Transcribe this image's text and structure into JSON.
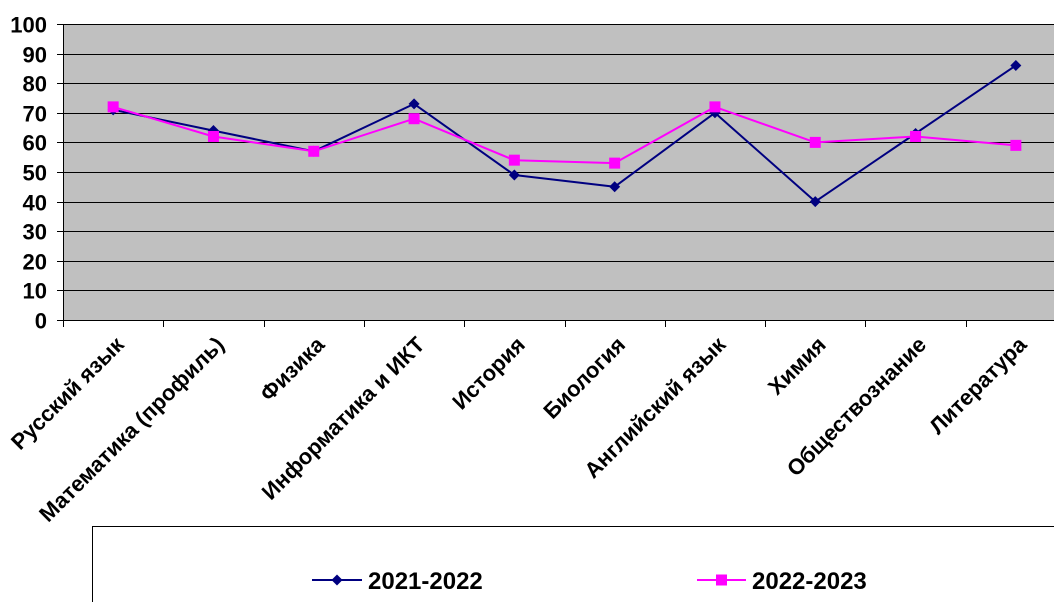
{
  "chart_data": {
    "type": "line",
    "categories": [
      "Русский язык",
      "Математика (профиль)",
      "Физика",
      "Информатика и ИКТ",
      "История",
      "Биология",
      "Английский язык",
      "Химия",
      "Обществознание",
      "Литература"
    ],
    "series": [
      {
        "name": "2021-2022",
        "values": [
          71,
          64,
          57,
          73,
          49,
          45,
          70,
          40,
          63,
          86
        ],
        "color": "#000080",
        "marker": "diamond"
      },
      {
        "name": "2022-2023",
        "values": [
          72,
          62,
          57,
          68,
          54,
          53,
          72,
          60,
          62,
          59
        ],
        "color": "#FF00FF",
        "marker": "square"
      }
    ],
    "ylim": [
      0,
      100
    ],
    "yticks": [
      0,
      10,
      20,
      30,
      40,
      50,
      60,
      70,
      80,
      90,
      100
    ],
    "grid": true,
    "legend_position": "bottom",
    "plot_background": "#C0C0C0"
  }
}
